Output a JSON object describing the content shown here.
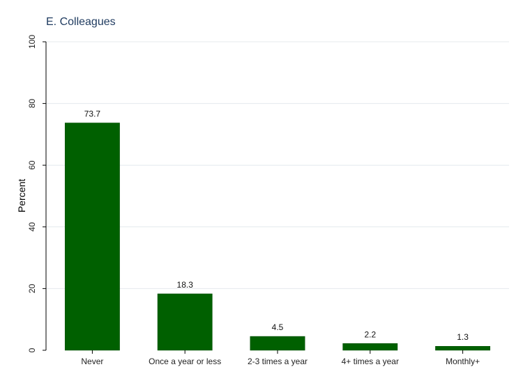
{
  "chart_data": {
    "type": "bar",
    "title": "E. Colleagues",
    "xlabel": "",
    "ylabel": "Percent",
    "categories": [
      "Never",
      "Once a year or less",
      "2-3 times a year",
      "4+ times a year",
      "Monthly+"
    ],
    "values": [
      73.7,
      18.3,
      4.5,
      2.2,
      1.3
    ],
    "data_labels": [
      "73.7",
      "18.3",
      "4.5",
      "2.2",
      "1.3"
    ],
    "ylim": [
      0,
      100
    ],
    "yticks": [
      0,
      20,
      40,
      60,
      80,
      100
    ],
    "grid": true,
    "legend": "none",
    "bar_color": "#006000"
  }
}
